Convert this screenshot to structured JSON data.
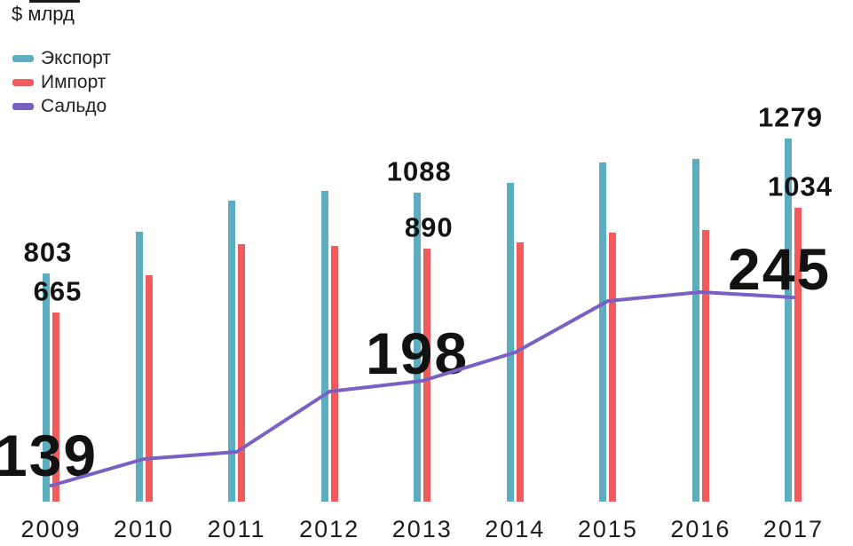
{
  "title": "$ млрд",
  "legend": [
    {
      "label": "Экспорт",
      "color": "#5CADBF"
    },
    {
      "label": "Импорт",
      "color": "#F15B5B"
    },
    {
      "label": "Сальдо",
      "color": "#7A5FC5"
    }
  ],
  "chart_data": {
    "type": "bar",
    "subtype": "grouped bars with overlay line",
    "unit_label": "$ млрд",
    "categories": [
      "2009",
      "2010",
      "2011",
      "2012",
      "2013",
      "2014",
      "2015",
      "2016",
      "2017"
    ],
    "series": [
      {
        "name": "Экспорт",
        "kind": "bar",
        "color": "#5CADBF",
        "values": [
          803,
          950,
          1060,
          1095,
          1088,
          1123,
          1195,
          1207,
          1279
        ],
        "labeled": [
          0,
          4,
          8
        ],
        "labeled_points": {
          "2009": 803,
          "2013": 1088,
          "2017": 1279
        }
      },
      {
        "name": "Импорт",
        "kind": "bar",
        "color": "#F15B5B",
        "values": [
          665,
          798,
          905,
          900,
          890,
          913,
          948,
          955,
          1034
        ],
        "labeled": [
          0,
          4,
          8
        ],
        "labeled_points": {
          "2009": 665,
          "2013": 890,
          "2017": 1034
        }
      },
      {
        "name": "Сальдо",
        "kind": "line",
        "color": "#7A5FC5",
        "values": [
          139,
          154,
          158,
          192,
          198,
          214,
          243,
          248,
          245
        ],
        "labeled": [
          0,
          4,
          8
        ],
        "labeled_points": {
          "2009": 139,
          "2013": 198,
          "2017": 245
        }
      }
    ],
    "grid": false,
    "y_axis_ticks": [],
    "legend_position": "top-left"
  }
}
